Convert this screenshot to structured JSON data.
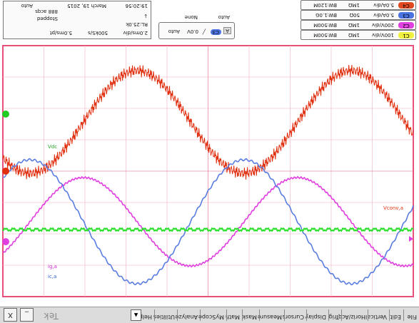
{
  "menu": {
    "items": [
      "File",
      "Edit",
      "Vertical",
      "Horiz/Acq",
      "Trig",
      "Display",
      "Cursors",
      "Measure",
      "Mask",
      "Math",
      "MyScope",
      "Analyze",
      "Utilities",
      "Help"
    ],
    "brand": "Tek",
    "minimize_label": "_",
    "close_label": "X",
    "scroll_label": "▲"
  },
  "waveforms": {
    "colors": {
      "ch1": "#e8e830",
      "ch2": "#5a7de0",
      "ch3": "#e040e0",
      "ch4": "#2ee02e",
      "red": "#e03010"
    },
    "labels": {
      "red": "Vconv,a",
      "ch1": "Vdc",
      "ch3": "ig,a",
      "ch2": "ic,a"
    }
  },
  "channels": [
    {
      "id": "C1",
      "scale": "100V/div",
      "impedance": "1MΩ",
      "bw": "BW:500M",
      "color": "#f0f040"
    },
    {
      "id": "C2",
      "scale": "200V/div",
      "impedance": "1MΩ",
      "bw": "BW:500M",
      "color": "#e040e0"
    },
    {
      "id": "C3",
      "scale": "5.0A/div",
      "impedance": "50Ω",
      "bw": "BW:1.0G",
      "color": "#4a72e0"
    },
    {
      "id": "C4",
      "scale": "5.0A/div",
      "impedance": "1MΩ",
      "bw": "BW:120M",
      "color": "#e04a20"
    }
  ],
  "trigger": {
    "src_label": "A",
    "ch": "C3",
    "level": "0.0V",
    "mode": "None",
    "auto": "Auto"
  },
  "acquisition": {
    "timebase": "2.0ms/div",
    "sample_rate": "500kS/s",
    "resolution": "5.0ms/pt",
    "record_length": "RL:25.0k",
    "status": "Stopped",
    "acqs": "888 acqs",
    "date": "March 19, 2015",
    "time": "19:20:56",
    "mode": "Auto"
  }
}
